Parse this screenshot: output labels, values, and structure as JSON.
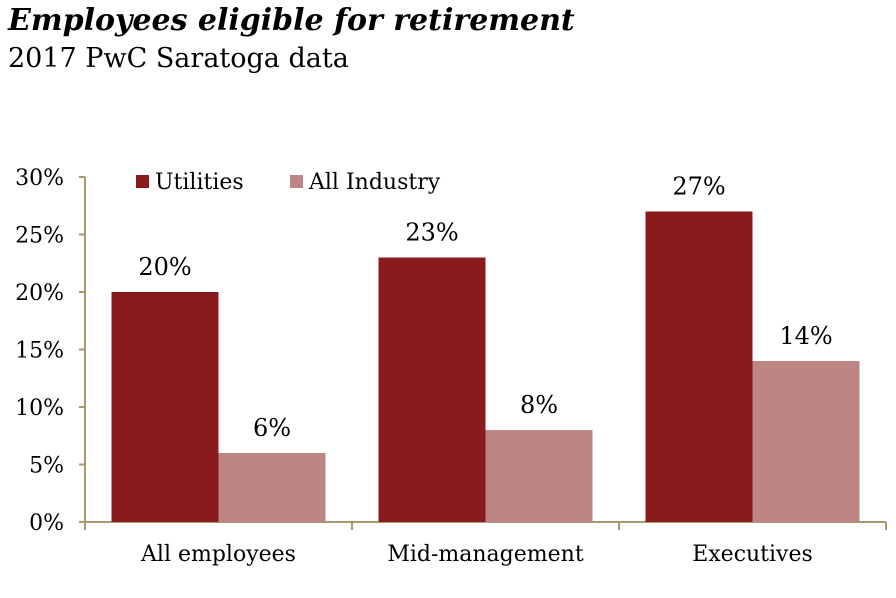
{
  "title": "Employees eligible for retirement",
  "subtitle": "2017 PwC Saratoga data",
  "chart_data": {
    "type": "bar",
    "categories": [
      "All employees",
      "Mid-management",
      "Executives"
    ],
    "series": [
      {
        "name": "Utilities",
        "values": [
          20,
          23,
          27
        ],
        "color": "#8b1a1c"
      },
      {
        "name": "All Industry",
        "values": [
          6,
          8,
          14
        ],
        "color": "#bd8584"
      }
    ],
    "y_ticks": [
      "0%",
      "5%",
      "10%",
      "15%",
      "20%",
      "25%",
      "30%"
    ],
    "ylim": [
      0,
      30
    ],
    "value_labels": [
      [
        "20%",
        "23%",
        "27%"
      ],
      [
        "6%",
        "8%",
        "14%"
      ]
    ],
    "legend_position": "top-left",
    "grid": false,
    "axis_color": "#a89a6e"
  }
}
